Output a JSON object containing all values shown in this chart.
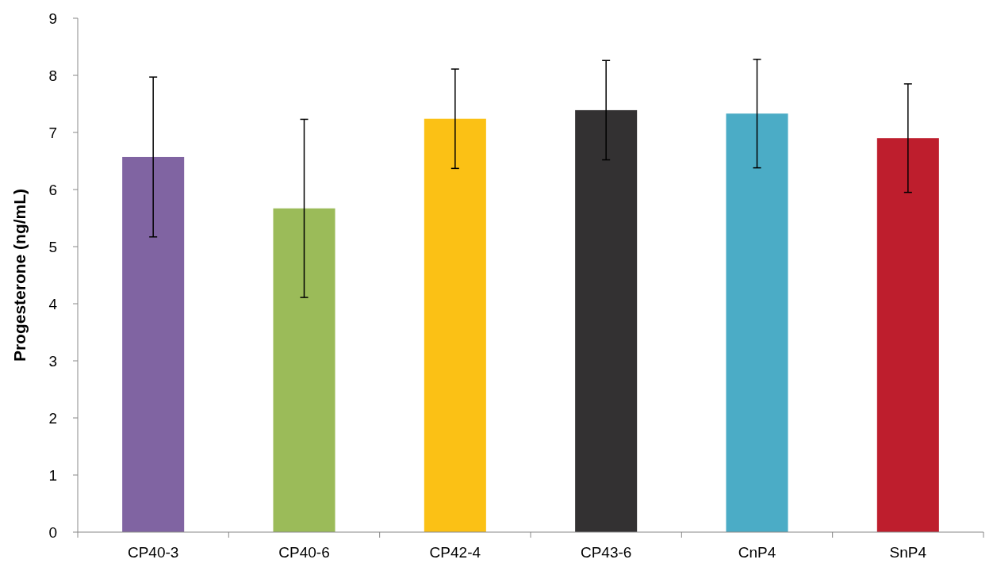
{
  "chart_data": {
    "type": "bar",
    "ylabel": "Progesterone (ng/mL)",
    "categories": [
      "CP40-3",
      "CP40-6",
      "CP42-4",
      "CP43-6",
      "CnP4",
      "SnP4"
    ],
    "values": [
      6.57,
      5.67,
      7.24,
      7.39,
      7.33,
      6.9
    ],
    "colors": [
      "#8064a2",
      "#9bbb59",
      "#fbc115",
      "#333132",
      "#4bacc6",
      "#be1e2d"
    ],
    "errors": [
      1.4,
      1.56,
      0.87,
      0.87,
      0.95,
      0.95
    ],
    "ylim": [
      0,
      9
    ],
    "yticks": [
      0,
      1,
      2,
      3,
      4,
      5,
      6,
      7,
      8,
      9
    ],
    "grid": false
  }
}
